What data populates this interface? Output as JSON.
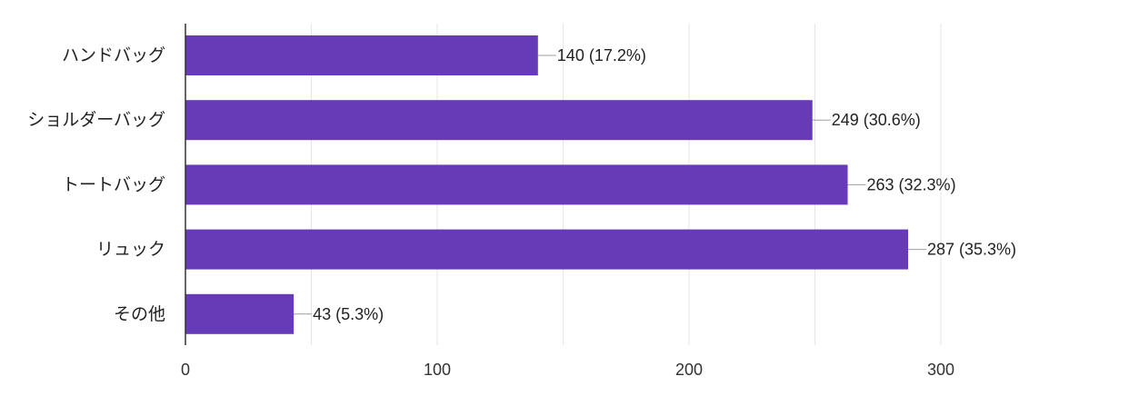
{
  "chart_data": {
    "type": "bar",
    "orientation": "horizontal",
    "categories": [
      "ハンドバッグ",
      "ショルダーバッグ",
      "トートバッグ",
      "リュック",
      "その他"
    ],
    "values": [
      140,
      249,
      263,
      287,
      43
    ],
    "data_labels": [
      "140 (17.2%)",
      "249 (30.6%)",
      "263 (32.3%)",
      "287 (35.3%)",
      "43 (5.3%)"
    ],
    "xlim": [
      0,
      300
    ],
    "x_ticks": [
      0,
      100,
      200,
      300
    ],
    "x_tick_labels": [
      "0",
      "100",
      "200",
      "300"
    ],
    "grid": true,
    "minor_grid_step": 50,
    "bar_color": "#673ab7",
    "title": "",
    "xlabel": "",
    "ylabel": ""
  }
}
